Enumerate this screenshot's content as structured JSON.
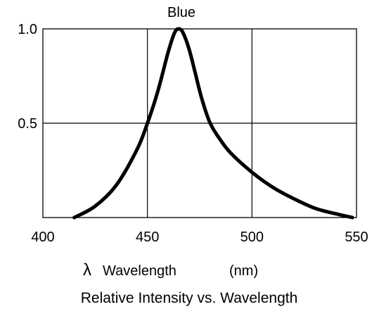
{
  "chart_data": {
    "type": "line",
    "title": "Blue",
    "subtitle": "Relative Intensity vs. Wavelength",
    "xlabel_symbol": "λ",
    "xlabel": "Wavelength",
    "xlabel_unit": "(nm)",
    "ylabel": "",
    "xlim": [
      400,
      550
    ],
    "ylim": [
      0,
      1.0
    ],
    "x_ticks": [
      400,
      450,
      500,
      550
    ],
    "x_tick_labels": [
      "400",
      "450",
      "500",
      "550"
    ],
    "y_ticks": [
      0.5,
      1.0
    ],
    "y_tick_labels": [
      "0.5",
      "1.0"
    ],
    "grid": true,
    "legend": "none",
    "line_color": "#000000",
    "series": [
      {
        "x": [
          415,
          425,
          435,
          445,
          450,
          455,
          460,
          463,
          465,
          467,
          470,
          473,
          476,
          480,
          485,
          490,
          500,
          510,
          520,
          530,
          540,
          548
        ],
        "values": [
          0.0,
          0.06,
          0.17,
          0.36,
          0.5,
          0.67,
          0.88,
          0.98,
          1.0,
          0.98,
          0.89,
          0.76,
          0.63,
          0.5,
          0.41,
          0.34,
          0.24,
          0.16,
          0.1,
          0.05,
          0.02,
          0.0
        ]
      }
    ]
  }
}
